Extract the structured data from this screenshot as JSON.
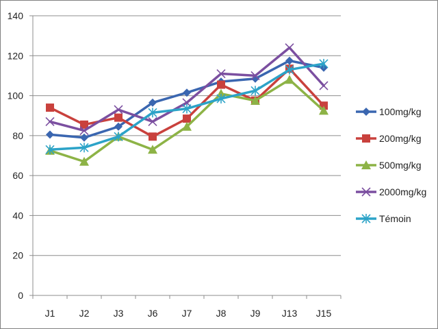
{
  "chart_data": {
    "type": "line",
    "categories": [
      "J1",
      "J2",
      "J3",
      "J6",
      "J7",
      "J8",
      "J9",
      "J13",
      "J15"
    ],
    "ylim": [
      0,
      140
    ],
    "yticks": [
      0,
      20,
      40,
      60,
      80,
      100,
      120,
      140
    ],
    "grid": true,
    "legend_position": "right",
    "series": [
      {
        "name": "100mg/kg",
        "color": "#3a66b0",
        "marker": "diamond",
        "values": [
          80.5,
          79,
          84.5,
          96.5,
          101.5,
          107,
          108.5,
          117.5,
          114
        ]
      },
      {
        "name": "200mg/kg",
        "color": "#c9413d",
        "marker": "square",
        "values": [
          94,
          85.5,
          89,
          79.5,
          88.5,
          105.5,
          97.5,
          113.5,
          95
        ]
      },
      {
        "name": "500mg/kg",
        "color": "#8db346",
        "marker": "triangle",
        "values": [
          72.5,
          67,
          79.5,
          73,
          84.5,
          101,
          97.5,
          108,
          92.5
        ]
      },
      {
        "name": "2000mg/kg",
        "color": "#7b4fa0",
        "marker": "x",
        "values": [
          87,
          82.5,
          93,
          87,
          96.5,
          111,
          110,
          124,
          105
        ]
      },
      {
        "name": "Témoin",
        "color": "#2ca3c8",
        "marker": "star",
        "values": [
          73,
          74,
          79.5,
          91.5,
          93.5,
          98.5,
          102.5,
          113,
          116
        ]
      }
    ]
  }
}
